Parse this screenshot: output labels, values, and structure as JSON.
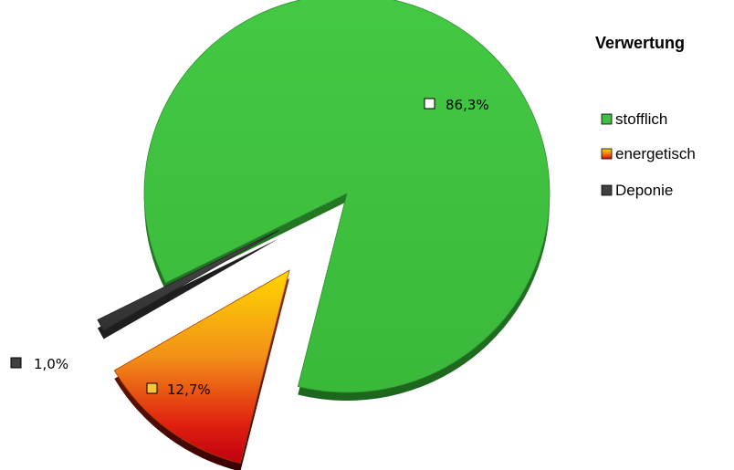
{
  "chart_data": {
    "type": "pie",
    "style": "3d-exploded",
    "categories": [
      "stofflich",
      "energetisch",
      "Deponie"
    ],
    "values": [
      86.3,
      12.7,
      1.0
    ],
    "data_labels": [
      "86,3%",
      "12,7%",
      "1,0%"
    ],
    "colors": [
      "#3fbf3f",
      "#f0a010",
      "#404040"
    ],
    "legend": {
      "title": "Verwertung",
      "placement": "top-right",
      "entries": [
        "stofflich",
        "energetisch",
        "Deponie"
      ]
    }
  }
}
